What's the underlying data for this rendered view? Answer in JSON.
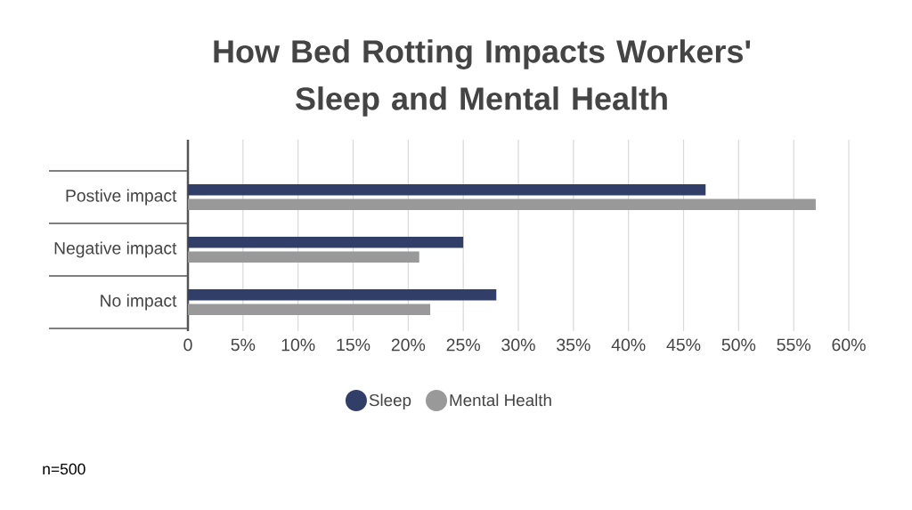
{
  "chart_data": {
    "type": "bar",
    "orientation": "horizontal",
    "title": "How Bed Rotting Impacts Workers' Sleep and Mental Health",
    "categories": [
      "Postive impact",
      "Negative impact",
      "No impact"
    ],
    "series": [
      {
        "name": "Sleep",
        "color": "#313f68",
        "values": [
          47,
          25,
          28
        ]
      },
      {
        "name": "Mental Health",
        "color": "#999999",
        "values": [
          57,
          21,
          22
        ]
      }
    ],
    "xlim": [
      0,
      60
    ],
    "xticks": [
      0,
      {
        "value": 5,
        "label": "5%"
      },
      {
        "value": 10,
        "label": "10%"
      },
      {
        "value": 15,
        "label": "15%"
      },
      {
        "value": 20,
        "label": "20%"
      },
      {
        "value": 25,
        "label": "25%"
      },
      {
        "value": 30,
        "label": "30%"
      },
      {
        "value": 35,
        "label": "35%"
      },
      {
        "value": 40,
        "label": "40%"
      },
      {
        "value": 45,
        "label": "45%"
      },
      {
        "value": 50,
        "label": "50%"
      },
      {
        "value": 55,
        "label": "55%"
      },
      {
        "value": 60,
        "label": "60%"
      }
    ],
    "grid": "x",
    "legend": "bottom",
    "annotations": [
      "n=500"
    ]
  }
}
